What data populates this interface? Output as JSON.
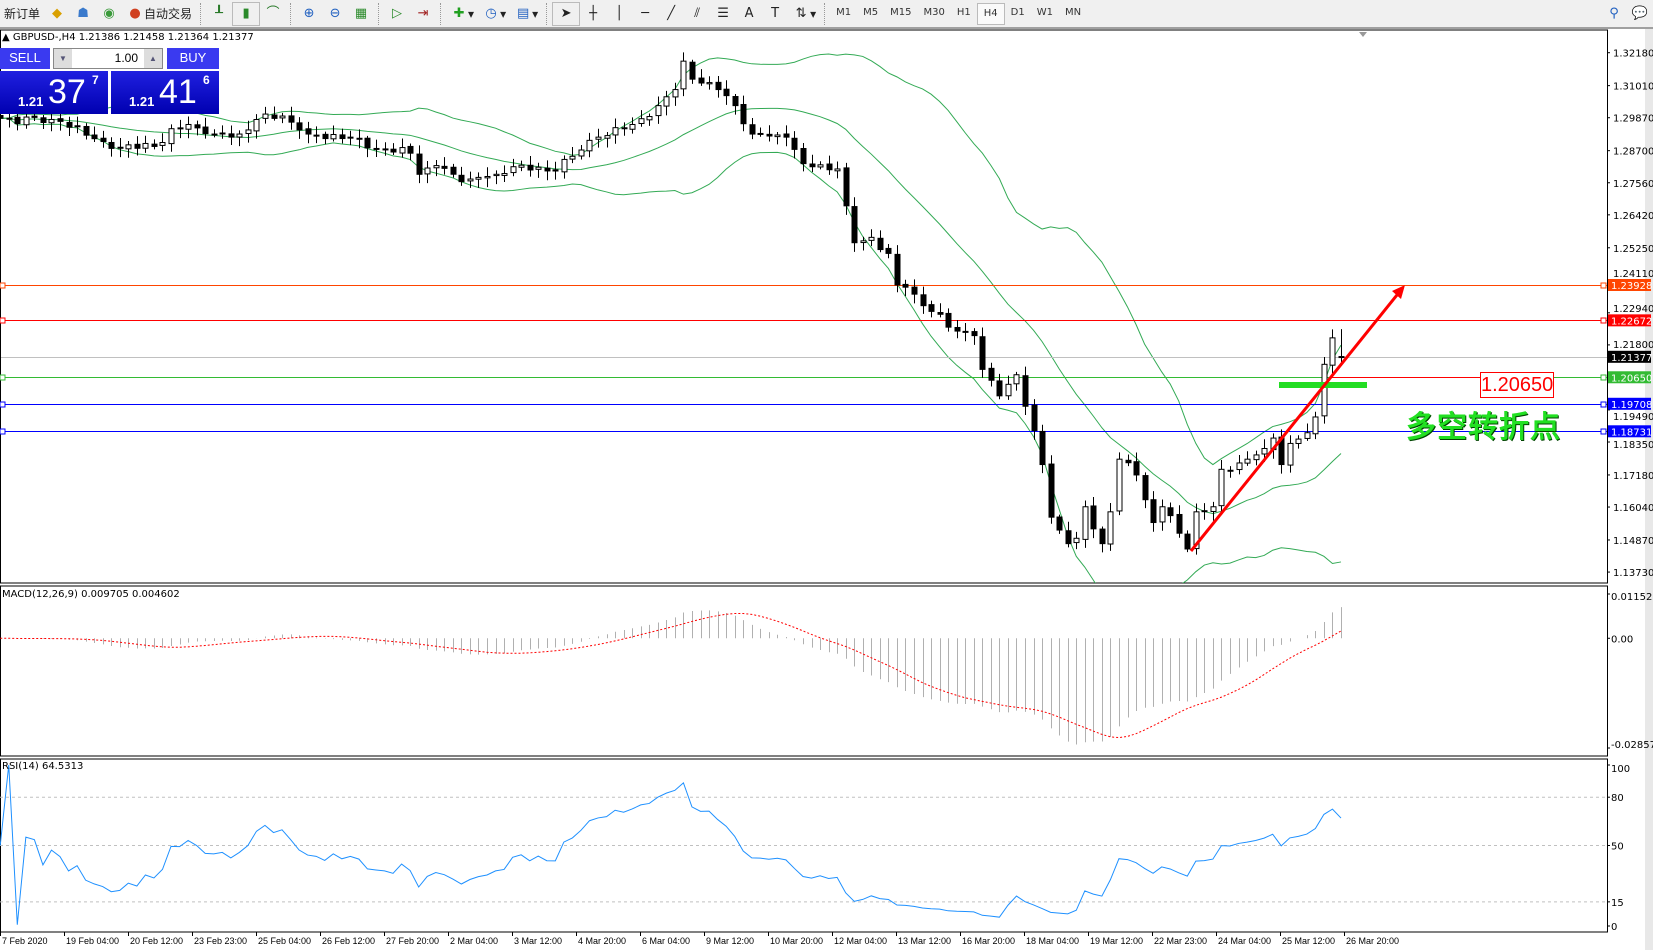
{
  "toolbar": {
    "new_order": "新订单",
    "auto_trading": "自动交易",
    "timeframes": [
      "M1",
      "M5",
      "M15",
      "M30",
      "H1",
      "H4",
      "D1",
      "W1",
      "MN"
    ],
    "active_timeframe": "H4"
  },
  "chart_title": "GBPUSD-,H4  1.21386 1.21458 1.21364 1.21377",
  "trade_panel": {
    "sell_label": "SELL",
    "buy_label": "BUY",
    "lot": "1.00",
    "sell_small": "1.21",
    "sell_big": "37",
    "sell_sup": "7",
    "buy_small": "1.21",
    "buy_big": "41",
    "buy_sup": "6"
  },
  "annotations": {
    "price_box": "1.20650",
    "text": "多空转折点",
    "arrow_color": "#ff0000",
    "zone_color": "#22dd22"
  },
  "indicators": {
    "macd_label": "MACD(12,26,9) 0.009705 0.004602",
    "macd_axis": [
      "0.011527",
      "0.00",
      "-0.028571"
    ],
    "rsi_label": "RSI(14) 64.5313",
    "rsi_axis": [
      "100",
      "80",
      "50",
      "15",
      "0"
    ]
  },
  "chart_data": {
    "type": "candlestick",
    "symbol": "GBPUSD-",
    "timeframe": "H4",
    "last": {
      "open": 1.21386,
      "high": 1.21458,
      "low": 1.21364,
      "close": 1.21377
    },
    "close_anchors": [
      [
        0,
        1.2985
      ],
      [
        7,
        1.2974
      ],
      [
        10,
        1.2925
      ],
      [
        14,
        1.288
      ],
      [
        19,
        1.2899
      ],
      [
        20,
        1.2948
      ],
      [
        22,
        1.2963
      ],
      [
        25,
        1.2929
      ],
      [
        28,
        1.2929
      ],
      [
        31,
        1.3
      ],
      [
        33,
        1.2993
      ],
      [
        36,
        1.2929
      ],
      [
        41,
        1.2918
      ],
      [
        43,
        1.288
      ],
      [
        48,
        1.2861
      ],
      [
        49,
        1.2786
      ],
      [
        51,
        1.2817
      ],
      [
        54,
        1.276
      ],
      [
        58,
        1.2786
      ],
      [
        60,
        1.2813
      ],
      [
        64,
        1.2798
      ],
      [
        67,
        1.285
      ],
      [
        70,
        1.2918
      ],
      [
        74,
        1.2963
      ],
      [
        77,
        1.303
      ],
      [
        79,
        1.3087
      ],
      [
        80,
        1.3188
      ],
      [
        81,
        1.3124
      ],
      [
        84,
        1.3087
      ],
      [
        86,
        1.303
      ],
      [
        88,
        1.2929
      ],
      [
        92,
        1.2918
      ],
      [
        94,
        1.2824
      ],
      [
        98,
        1.2805
      ],
      [
        99,
        1.2674
      ],
      [
        100,
        1.2543
      ],
      [
        102,
        1.2562
      ],
      [
        104,
        1.2505
      ],
      [
        105,
        1.2393
      ],
      [
        106,
        1.2385
      ],
      [
        109,
        1.2299
      ],
      [
        111,
        1.2243
      ],
      [
        114,
        1.2213
      ],
      [
        115,
        1.2093
      ],
      [
        117,
        1.1999
      ],
      [
        119,
        1.2074
      ],
      [
        120,
        1.1962
      ],
      [
        122,
        1.1755
      ],
      [
        123,
        1.1568
      ],
      [
        125,
        1.1474
      ],
      [
        126,
        1.1493
      ],
      [
        127,
        1.1605
      ],
      [
        129,
        1.1474
      ],
      [
        130,
        1.1587
      ],
      [
        131,
        1.1774
      ],
      [
        133,
        1.1718
      ],
      [
        135,
        1.1549
      ],
      [
        136,
        1.1605
      ],
      [
        138,
        1.1511
      ],
      [
        139,
        1.1455
      ],
      [
        140,
        1.1587
      ],
      [
        142,
        1.1605
      ],
      [
        143,
        1.1738
      ],
      [
        146,
        1.1774
      ],
      [
        148,
        1.1812
      ],
      [
        149,
        1.1849
      ],
      [
        150,
        1.1755
      ],
      [
        151,
        1.183
      ],
      [
        153,
        1.1868
      ],
      [
        154,
        1.1924
      ],
      [
        155,
        1.2111
      ],
      [
        156,
        1.2205
      ],
      [
        157,
        1.21377
      ]
    ],
    "price_ticks": [
      "1.32180",
      "1.31010",
      "1.29870",
      "1.28700",
      "1.27560",
      "1.26420",
      "1.25250",
      "1.24110",
      "1.22940",
      "1.21800",
      "1.19490",
      "1.18350",
      "1.17180",
      "1.16040",
      "1.14870",
      "1.13730"
    ],
    "time_labels": [
      "7 Feb 2020",
      "19 Feb 04:00",
      "20 Feb 12:00",
      "23 Feb 23:00",
      "25 Feb 04:00",
      "26 Feb 12:00",
      "27 Feb 20:00",
      "2 Mar 04:00",
      "3 Mar 12:00",
      "4 Mar 20:00",
      "6 Mar 04:00",
      "9 Mar 12:00",
      "10 Mar 20:00",
      "12 Mar 04:00",
      "13 Mar 12:00",
      "16 Mar 20:00",
      "18 Mar 04:00",
      "19 Mar 12:00",
      "22 Mar 23:00",
      "24 Mar 04:00",
      "25 Mar 12:00",
      "26 Mar 20:00"
    ],
    "horizontal_lines": [
      {
        "price": "1.23928",
        "color": "#ff4500"
      },
      {
        "price": "1.22672",
        "color": "#ff0000"
      },
      {
        "price": "1.21377",
        "color": "#000000",
        "line_color": "#c0c0c0"
      },
      {
        "price": "1.20650",
        "color": "#33bb33"
      },
      {
        "price": "1.19708",
        "color": "#0000ff"
      },
      {
        "price": "1.18731",
        "color": "#0000ff"
      }
    ],
    "bollinger": {
      "period": 20,
      "deviation": 2,
      "color": "#33aa55"
    },
    "macd": {
      "fast": 12,
      "slow": 26,
      "signal": 9,
      "range": [
        -0.028571,
        0.011527
      ],
      "hist_color": "#b0b0b0",
      "signal_color": "#ff0000"
    },
    "rsi": {
      "period": 14,
      "levels": [
        80,
        50,
        15
      ],
      "color": "#1e90ff"
    },
    "grid": false
  }
}
